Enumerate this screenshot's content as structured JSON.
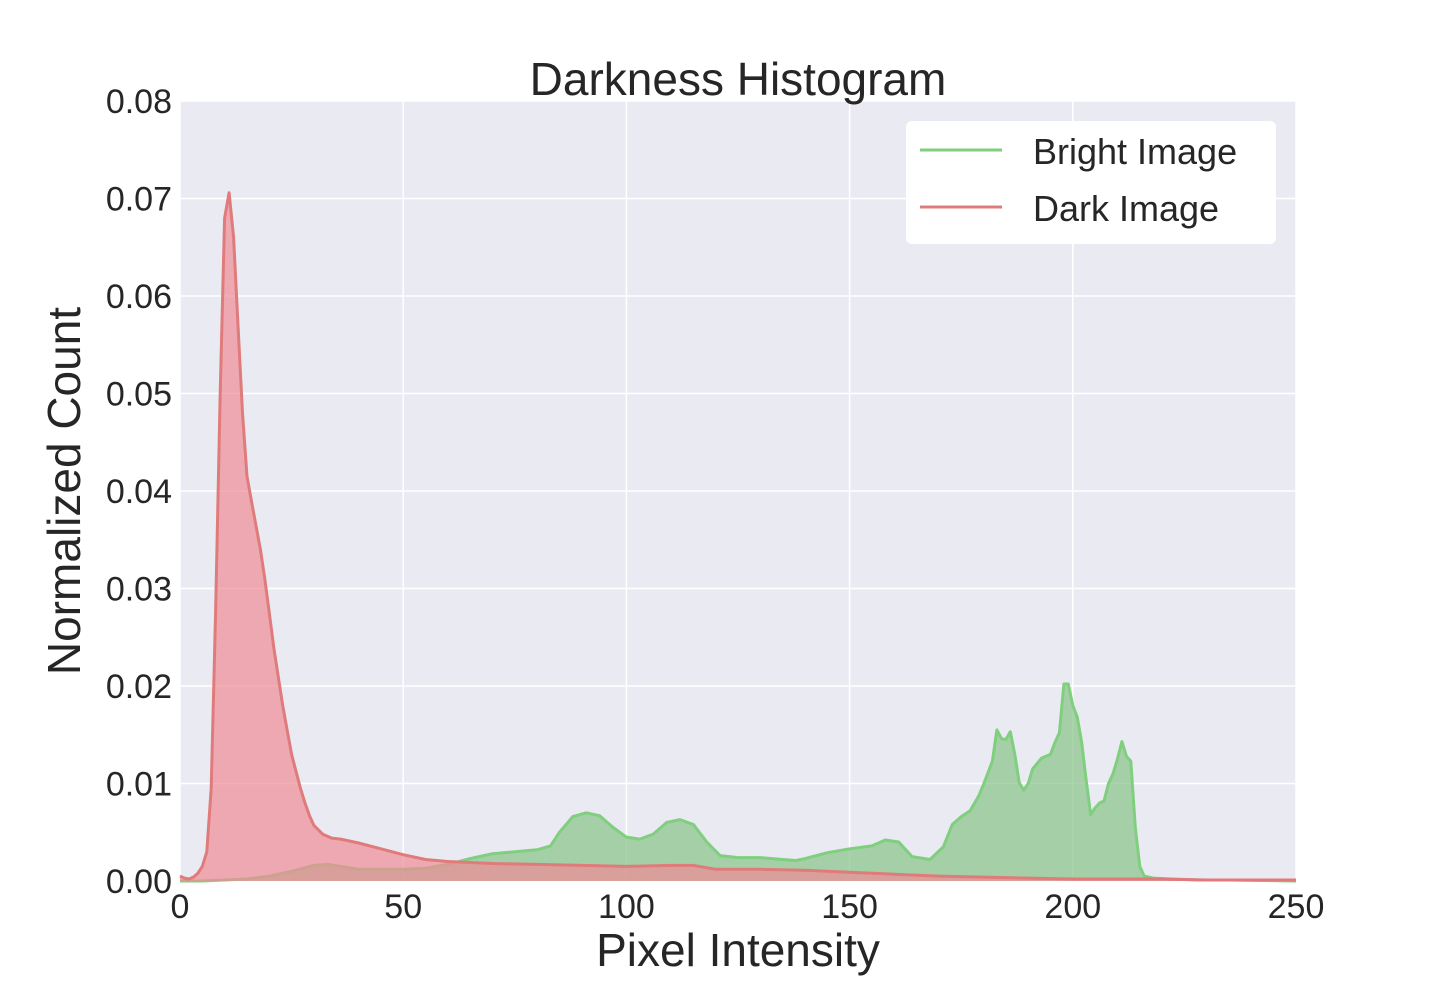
{
  "chart_data": {
    "type": "area",
    "title": "Darkness Histogram",
    "xlabel": "Pixel Intensity",
    "ylabel": "Normalized Count",
    "xlim": [
      0,
      250
    ],
    "ylim": [
      0,
      0.08
    ],
    "x_ticks": [
      0,
      50,
      100,
      150,
      200,
      250
    ],
    "x_tick_labels": [
      "0",
      "50",
      "100",
      "150",
      "200",
      "250"
    ],
    "y_ticks": [
      0,
      0.01,
      0.02,
      0.03,
      0.04,
      0.05,
      0.06,
      0.07,
      0.08
    ],
    "y_tick_labels": [
      "0.00",
      "0.01",
      "0.02",
      "0.03",
      "0.04",
      "0.05",
      "0.06",
      "0.07",
      "0.08"
    ],
    "grid": true,
    "legend_position": "top-right",
    "background_color": "#eaeaf2",
    "series": [
      {
        "name": "Bright Image",
        "line_color": "#7fcf7f",
        "fill_color": "#8ec68e",
        "points": [
          [
            0,
            0.0
          ],
          [
            5,
            0.0
          ],
          [
            10,
            0.0001
          ],
          [
            15,
            0.0002
          ],
          [
            20,
            0.0005
          ],
          [
            25,
            0.001
          ],
          [
            30,
            0.0016
          ],
          [
            33,
            0.0017
          ],
          [
            36,
            0.0015
          ],
          [
            40,
            0.0012
          ],
          [
            45,
            0.0012
          ],
          [
            50,
            0.0012
          ],
          [
            55,
            0.0013
          ],
          [
            60,
            0.0017
          ],
          [
            65,
            0.0023
          ],
          [
            70,
            0.0028
          ],
          [
            75,
            0.003
          ],
          [
            80,
            0.0032
          ],
          [
            83,
            0.0036
          ],
          [
            85,
            0.005
          ],
          [
            88,
            0.0066
          ],
          [
            91,
            0.007
          ],
          [
            94,
            0.0067
          ],
          [
            97,
            0.0055
          ],
          [
            100,
            0.0045
          ],
          [
            103,
            0.0043
          ],
          [
            106,
            0.0048
          ],
          [
            109,
            0.006
          ],
          [
            112,
            0.0063
          ],
          [
            115,
            0.0058
          ],
          [
            118,
            0.004
          ],
          [
            121,
            0.0026
          ],
          [
            125,
            0.0024
          ],
          [
            130,
            0.0024
          ],
          [
            135,
            0.0022
          ],
          [
            138,
            0.0021
          ],
          [
            140,
            0.0023
          ],
          [
            145,
            0.0029
          ],
          [
            150,
            0.0033
          ],
          [
            155,
            0.0036
          ],
          [
            158,
            0.0042
          ],
          [
            161,
            0.004
          ],
          [
            164,
            0.0025
          ],
          [
            168,
            0.0022
          ],
          [
            171,
            0.0035
          ],
          [
            173,
            0.0058
          ],
          [
            175,
            0.0066
          ],
          [
            177,
            0.0072
          ],
          [
            179,
            0.0088
          ],
          [
            180,
            0.0099
          ],
          [
            181,
            0.0111
          ],
          [
            182,
            0.0123
          ],
          [
            183,
            0.0155
          ],
          [
            184,
            0.0146
          ],
          [
            185,
            0.0145
          ],
          [
            186,
            0.0153
          ],
          [
            187,
            0.013
          ],
          [
            188,
            0.0101
          ],
          [
            189,
            0.0093
          ],
          [
            190,
            0.01
          ],
          [
            191,
            0.0115
          ],
          [
            193,
            0.0126
          ],
          [
            195,
            0.013
          ],
          [
            196,
            0.0142
          ],
          [
            197,
            0.0152
          ],
          [
            198,
            0.0202
          ],
          [
            199,
            0.0202
          ],
          [
            200,
            0.018
          ],
          [
            201,
            0.0168
          ],
          [
            202,
            0.0142
          ],
          [
            203,
            0.0103
          ],
          [
            204,
            0.0068
          ],
          [
            205,
            0.0075
          ],
          [
            206,
            0.008
          ],
          [
            207,
            0.0082
          ],
          [
            208,
            0.01
          ],
          [
            209,
            0.011
          ],
          [
            210,
            0.0125
          ],
          [
            211,
            0.0143
          ],
          [
            212,
            0.0128
          ],
          [
            213,
            0.0123
          ],
          [
            214,
            0.0055
          ],
          [
            215,
            0.0015
          ],
          [
            216,
            0.0005
          ],
          [
            218,
            0.0003
          ],
          [
            222,
            0.0002
          ],
          [
            228,
            0.0001
          ],
          [
            235,
            0.0001
          ],
          [
            250,
            0.0
          ]
        ]
      },
      {
        "name": "Dark Image",
        "line_color": "#e07b7b",
        "fill_color": "#ef8c95",
        "points": [
          [
            0,
            0.0005
          ],
          [
            1,
            0.0003
          ],
          [
            2,
            0.0002
          ],
          [
            3,
            0.0004
          ],
          [
            4,
            0.0008
          ],
          [
            5,
            0.0015
          ],
          [
            6,
            0.003
          ],
          [
            7,
            0.0095
          ],
          [
            8,
            0.028
          ],
          [
            9,
            0.05
          ],
          [
            10,
            0.068
          ],
          [
            11,
            0.0706
          ],
          [
            12,
            0.066
          ],
          [
            13,
            0.057
          ],
          [
            14,
            0.048
          ],
          [
            15,
            0.0415
          ],
          [
            16,
            0.039
          ],
          [
            17,
            0.0365
          ],
          [
            18,
            0.034
          ],
          [
            19,
            0.031
          ],
          [
            20,
            0.0275
          ],
          [
            21,
            0.024
          ],
          [
            22,
            0.021
          ],
          [
            23,
            0.018
          ],
          [
            24,
            0.0155
          ],
          [
            25,
            0.013
          ],
          [
            26,
            0.0112
          ],
          [
            27,
            0.0095
          ],
          [
            28,
            0.008
          ],
          [
            29,
            0.0067
          ],
          [
            30,
            0.0057
          ],
          [
            32,
            0.0048
          ],
          [
            34,
            0.0044
          ],
          [
            36,
            0.0043
          ],
          [
            40,
            0.0039
          ],
          [
            45,
            0.0033
          ],
          [
            50,
            0.0027
          ],
          [
            55,
            0.0022
          ],
          [
            60,
            0.002
          ],
          [
            70,
            0.0018
          ],
          [
            80,
            0.0017
          ],
          [
            90,
            0.0016
          ],
          [
            100,
            0.0015
          ],
          [
            110,
            0.0016
          ],
          [
            115,
            0.0016
          ],
          [
            120,
            0.0012
          ],
          [
            130,
            0.0012
          ],
          [
            140,
            0.0011
          ],
          [
            150,
            0.0009
          ],
          [
            160,
            0.0007
          ],
          [
            170,
            0.0005
          ],
          [
            180,
            0.0004
          ],
          [
            190,
            0.0003
          ],
          [
            200,
            0.0002
          ],
          [
            210,
            0.0002
          ],
          [
            220,
            0.0002
          ],
          [
            230,
            0.0001
          ],
          [
            240,
            0.0001
          ],
          [
            250,
            0.0001
          ]
        ]
      }
    ]
  }
}
